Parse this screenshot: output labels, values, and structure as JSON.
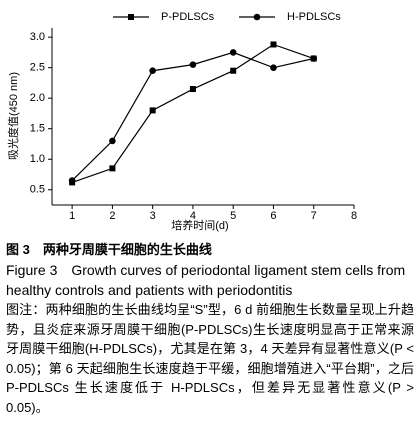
{
  "chart_data": {
    "type": "line",
    "x": [
      1,
      2,
      3,
      4,
      5,
      6,
      7
    ],
    "series": [
      {
        "name": "P-PDLSCs",
        "color": "#000000",
        "marker": "square",
        "values": [
          0.62,
          0.85,
          1.8,
          2.15,
          2.45,
          2.88,
          2.65
        ]
      },
      {
        "name": "H-PDLSCs",
        "color": "#000000",
        "marker": "circle",
        "values": [
          0.65,
          1.3,
          2.45,
          2.55,
          2.75,
          2.5,
          2.65
        ]
      }
    ],
    "xlabel": "培养时间(d)",
    "ylabel": "吸光度值(450 nm)",
    "xlim": [
      0.5,
      8
    ],
    "xticks": [
      1,
      2,
      3,
      4,
      5,
      6,
      7,
      8
    ],
    "ylim": [
      0.25,
      3.15
    ],
    "yticks": [
      0.5,
      {
        "value": 1,
        "label": "1.0"
      },
      1.5,
      {
        "value": 2,
        "label": "2.0"
      },
      2.5,
      {
        "value": 3,
        "label": "3.0"
      }
    ],
    "grid": false,
    "legend": "top"
  },
  "caption": {
    "title_cn": "图 3　两种牙周膜干细胞的生长曲线",
    "title_en": "Figure 3　Growth curves of periodontal ligament stem cells from healthy controls and patients with periodontitis",
    "note": "图注：两种细胞的生长曲线均呈“S”型，6 d 前细胞生长数量呈现上升趋势，且炎症来源牙周膜干细胞(P-PDLSCs)生长速度明显高于正常来源牙周膜干细胞(H-PDLSCs)，尤其是在第 3，4 天差异有显著性意义(P < 0.05)；第 6 天起细胞生长速度趋于平缓，细胞增殖进入“平台期”，之后 P-PDLSCs 生长速度低于 H-PDLSCs，但差异无显著性意义(P > 0.05)。"
  }
}
